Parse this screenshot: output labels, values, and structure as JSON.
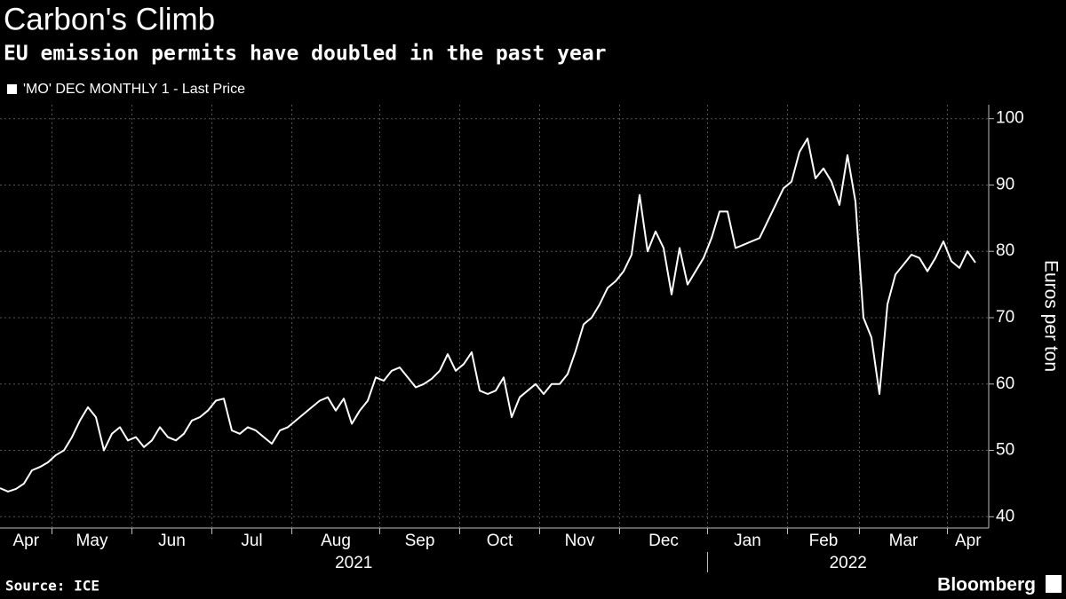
{
  "chart_data": {
    "type": "line",
    "title": "Carbon's Climb",
    "subtitle": "EU emission permits have doubled in the past year",
    "y_label": "Euros per ton",
    "source": "Source: ICE",
    "brand": "Bloomberg",
    "series": [
      {
        "name": "'MO' DEC MONTHLY 1 - Last Price",
        "color": "#ffffff",
        "values": [
          44.3,
          43.8,
          44.2,
          45,
          47,
          47.5,
          48.2,
          49.3,
          50,
          52,
          54.5,
          56.5,
          55,
          50,
          52.5,
          53.5,
          51.5,
          52,
          50.5,
          51.5,
          53.5,
          52,
          51.5,
          52.5,
          54.5,
          55,
          56,
          57.5,
          57.8,
          53,
          52.5,
          53.5,
          53,
          52,
          51,
          53,
          53.5,
          54.5,
          55.5,
          56.5,
          57.5,
          58,
          56,
          57.8,
          54,
          56,
          57.5,
          61,
          60.5,
          62,
          62.5,
          61,
          59.5,
          60,
          60.8,
          62,
          64.5,
          62,
          63,
          64.8,
          59,
          58.5,
          59,
          61,
          55,
          58,
          59,
          60,
          58.5,
          60,
          60,
          61.5,
          65,
          69,
          70,
          72,
          74.5,
          75.5,
          77,
          79.5,
          88.5,
          80,
          83,
          80.5,
          73.5,
          80.5,
          75,
          77,
          79,
          82,
          86,
          86,
          80.5,
          81,
          81.5,
          82,
          84.5,
          87,
          89.5,
          90.5,
          95,
          97,
          91,
          92.5,
          90.5,
          87,
          94.5,
          87.5,
          70,
          67,
          58.5,
          72,
          76.5,
          78,
          79.5,
          79,
          77,
          79,
          81.5,
          78.5,
          77.5,
          80,
          78.3
        ]
      }
    ],
    "categories": [
      "Apr",
      null,
      null,
      null,
      null,
      null,
      null,
      "May",
      null,
      null,
      null,
      null,
      null,
      null,
      null,
      null,
      null,
      "Jun",
      null,
      null,
      null,
      null,
      null,
      null,
      null,
      null,
      null,
      "Jul",
      null,
      null,
      null,
      null,
      null,
      null,
      null,
      null,
      null,
      "Aug",
      null,
      null,
      null,
      null,
      null,
      null,
      null,
      null,
      null,
      null,
      "Sep",
      null,
      null,
      null,
      null,
      null,
      null,
      null,
      null,
      null,
      "Oct",
      null,
      null,
      null,
      null,
      null,
      null,
      null,
      null,
      null,
      "Nov",
      null,
      null,
      null,
      null,
      null,
      null,
      null,
      null,
      null,
      "Dec",
      null,
      null,
      null,
      null,
      null,
      null,
      null,
      null,
      null,
      null,
      "Jan",
      null,
      null,
      null,
      null,
      null,
      null,
      null,
      null,
      null,
      "Feb",
      null,
      null,
      null,
      null,
      null,
      null,
      null,
      null,
      "Mar",
      null,
      null,
      null,
      null,
      null,
      null,
      null,
      null,
      null,
      null,
      "Apr",
      null,
      null,
      null
    ],
    "year_categories": [
      "2021",
      null,
      null,
      null,
      null,
      null,
      null,
      null,
      null,
      null,
      null,
      null,
      null,
      null,
      null,
      null,
      null,
      null,
      null,
      null,
      null,
      null,
      null,
      null,
      null,
      null,
      null,
      null,
      null,
      null,
      null,
      null,
      null,
      null,
      null,
      null,
      null,
      null,
      null,
      null,
      null,
      null,
      null,
      null,
      null,
      null,
      null,
      null,
      null,
      null,
      null,
      null,
      null,
      null,
      null,
      null,
      null,
      null,
      null,
      null,
      null,
      null,
      null,
      null,
      null,
      null,
      null,
      null,
      null,
      null,
      null,
      null,
      null,
      null,
      null,
      null,
      null,
      null,
      null,
      null,
      null,
      null,
      null,
      null,
      null,
      null,
      null,
      null,
      null,
      "2022",
      null,
      null,
      null,
      null,
      null,
      null,
      null,
      null,
      null,
      null,
      null,
      null,
      null,
      null,
      null,
      null,
      null,
      null,
      null,
      null,
      null,
      null,
      null,
      null,
      null,
      null,
      null,
      null,
      null,
      null,
      null,
      null,
      null,
      null,
      null,
      null,
      null,
      null
    ],
    "ylim": [
      38.3,
      102.1
    ],
    "yticks": [
      40,
      50,
      60,
      70,
      80,
      90,
      100
    ],
    "grid": true,
    "y_axis_side": "right"
  }
}
